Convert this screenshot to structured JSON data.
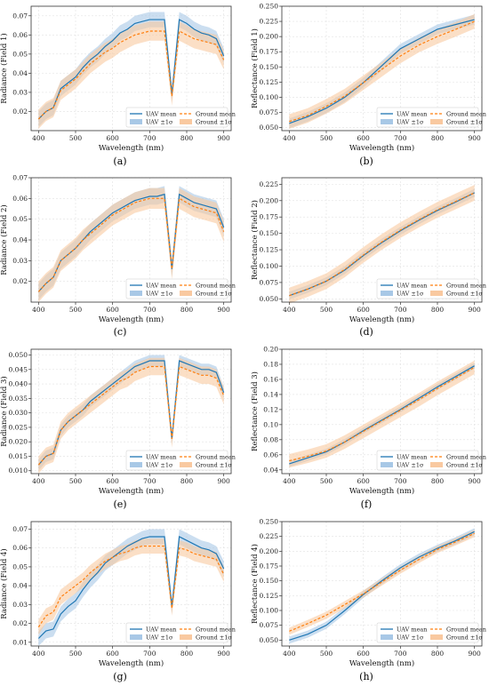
{
  "colors": {
    "uav": "#1f77b4",
    "uav_band": "#a8c8e6",
    "ground": "#ff7f0e",
    "ground_band": "#f9c9a0"
  },
  "legend_labels": [
    "UAV mean",
    "Ground mean",
    "UAV ±1σ",
    "Ground ±1σ"
  ],
  "chart_data": [
    {
      "type": "line",
      "panel": "a",
      "xlabel": "Wavelength (nm)",
      "ylabel": "Radiance (Field 1)",
      "xlim": [
        380,
        920
      ],
      "ylim": [
        0.01,
        0.075
      ],
      "xticks": [
        400,
        500,
        600,
        700,
        800,
        900
      ],
      "yticks": [
        0.02,
        0.03,
        0.04,
        0.05,
        0.06,
        0.07
      ],
      "ytick_decimals": 2,
      "legend": "lower-right",
      "x": [
        400,
        420,
        440,
        460,
        480,
        500,
        520,
        540,
        560,
        580,
        600,
        620,
        640,
        660,
        680,
        700,
        720,
        740,
        760,
        780,
        800,
        820,
        840,
        860,
        880,
        900
      ],
      "series": [
        {
          "name": "UAV mean",
          "values": [
            0.016,
            0.02,
            0.022,
            0.032,
            0.035,
            0.038,
            0.043,
            0.047,
            0.05,
            0.054,
            0.057,
            0.061,
            0.063,
            0.066,
            0.067,
            0.068,
            0.068,
            0.068,
            0.029,
            0.068,
            0.066,
            0.063,
            0.061,
            0.06,
            0.058,
            0.049
          ],
          "band": 0.004
        },
        {
          "name": "Ground mean",
          "values": [
            0.016,
            0.02,
            0.022,
            0.031,
            0.034,
            0.037,
            0.041,
            0.045,
            0.048,
            0.051,
            0.053,
            0.056,
            0.058,
            0.06,
            0.061,
            0.062,
            0.062,
            0.062,
            0.028,
            0.062,
            0.06,
            0.058,
            0.057,
            0.056,
            0.055,
            0.047
          ],
          "band": 0.005
        }
      ]
    },
    {
      "type": "line",
      "panel": "b",
      "xlabel": "Wavelength (nm)",
      "ylabel": "Reflectance (Field 1)",
      "xlim": [
        380,
        920
      ],
      "ylim": [
        0.045,
        0.25
      ],
      "xticks": [
        400,
        500,
        600,
        700,
        800,
        900
      ],
      "yticks": [
        0.05,
        0.075,
        0.1,
        0.125,
        0.15,
        0.175,
        0.2,
        0.225,
        0.25
      ],
      "ytick_decimals": 3,
      "legend": "lower-right",
      "x": [
        400,
        450,
        500,
        550,
        600,
        650,
        700,
        750,
        800,
        850,
        900
      ],
      "series": [
        {
          "name": "UAV mean",
          "values": [
            0.057,
            0.068,
            0.082,
            0.1,
            0.124,
            0.152,
            0.18,
            0.196,
            0.212,
            0.22,
            0.228
          ],
          "band": 0.008
        },
        {
          "name": "Ground mean",
          "values": [
            0.06,
            0.07,
            0.085,
            0.102,
            0.124,
            0.146,
            0.168,
            0.186,
            0.2,
            0.212,
            0.225
          ],
          "band": 0.012
        }
      ]
    },
    {
      "type": "line",
      "panel": "c",
      "xlabel": "Wavelength (nm)",
      "ylabel": "Radiance (Field 2)",
      "xlim": [
        380,
        920
      ],
      "ylim": [
        0.01,
        0.07
      ],
      "xticks": [
        400,
        500,
        600,
        700,
        800,
        900
      ],
      "yticks": [
        0.02,
        0.03,
        0.04,
        0.05,
        0.06,
        0.07
      ],
      "ytick_decimals": 2,
      "legend": "lower-right",
      "x": [
        400,
        420,
        440,
        460,
        480,
        500,
        520,
        540,
        560,
        580,
        600,
        620,
        640,
        660,
        680,
        700,
        720,
        740,
        760,
        780,
        800,
        820,
        840,
        860,
        880,
        900
      ],
      "series": [
        {
          "name": "UAV mean",
          "values": [
            0.015,
            0.019,
            0.022,
            0.03,
            0.033,
            0.036,
            0.04,
            0.044,
            0.047,
            0.05,
            0.053,
            0.055,
            0.057,
            0.059,
            0.06,
            0.061,
            0.061,
            0.062,
            0.026,
            0.062,
            0.06,
            0.058,
            0.057,
            0.056,
            0.055,
            0.046
          ],
          "band": 0.004
        },
        {
          "name": "Ground mean",
          "values": [
            0.015,
            0.019,
            0.022,
            0.03,
            0.033,
            0.036,
            0.04,
            0.043,
            0.046,
            0.049,
            0.052,
            0.054,
            0.056,
            0.058,
            0.059,
            0.06,
            0.06,
            0.06,
            0.026,
            0.06,
            0.058,
            0.056,
            0.055,
            0.054,
            0.053,
            0.044
          ],
          "band": 0.005
        }
      ]
    },
    {
      "type": "line",
      "panel": "d",
      "xlabel": "Wavelength (nm)",
      "ylabel": "Reflectance (Field 2)",
      "xlim": [
        380,
        920
      ],
      "ylim": [
        0.045,
        0.235
      ],
      "xticks": [
        400,
        500,
        600,
        700,
        800,
        900
      ],
      "yticks": [
        0.05,
        0.075,
        0.1,
        0.125,
        0.15,
        0.175,
        0.2,
        0.225
      ],
      "ytick_decimals": 3,
      "legend": "lower-right",
      "x": [
        400,
        450,
        500,
        550,
        600,
        650,
        700,
        750,
        800,
        850,
        900
      ],
      "series": [
        {
          "name": "UAV mean",
          "values": [
            0.055,
            0.065,
            0.077,
            0.094,
            0.116,
            0.136,
            0.154,
            0.17,
            0.185,
            0.198,
            0.212
          ],
          "band": 0.006
        },
        {
          "name": "Ground mean",
          "values": [
            0.055,
            0.065,
            0.077,
            0.095,
            0.117,
            0.137,
            0.155,
            0.171,
            0.186,
            0.199,
            0.212
          ],
          "band": 0.012
        }
      ]
    },
    {
      "type": "line",
      "panel": "e",
      "xlabel": "Wavelength (nm)",
      "ylabel": "Radiance (Field 3)",
      "xlim": [
        380,
        920
      ],
      "ylim": [
        0.009,
        0.052
      ],
      "xticks": [
        400,
        500,
        600,
        700,
        800,
        900
      ],
      "yticks": [
        0.01,
        0.015,
        0.02,
        0.025,
        0.03,
        0.035,
        0.04,
        0.045,
        0.05
      ],
      "ytick_decimals": 3,
      "legend": "lower-right",
      "x": [
        400,
        420,
        440,
        460,
        480,
        500,
        520,
        540,
        560,
        580,
        600,
        620,
        640,
        660,
        680,
        700,
        720,
        740,
        760,
        780,
        800,
        820,
        840,
        860,
        880,
        900
      ],
      "series": [
        {
          "name": "UAV mean",
          "values": [
            0.012,
            0.015,
            0.016,
            0.024,
            0.027,
            0.029,
            0.031,
            0.034,
            0.036,
            0.038,
            0.04,
            0.042,
            0.044,
            0.046,
            0.047,
            0.048,
            0.048,
            0.048,
            0.021,
            0.048,
            0.047,
            0.046,
            0.045,
            0.045,
            0.044,
            0.037
          ],
          "band": 0.002
        },
        {
          "name": "Ground mean",
          "values": [
            0.012,
            0.015,
            0.016,
            0.024,
            0.027,
            0.029,
            0.031,
            0.033,
            0.035,
            0.037,
            0.039,
            0.041,
            0.042,
            0.044,
            0.045,
            0.046,
            0.046,
            0.046,
            0.021,
            0.046,
            0.045,
            0.044,
            0.043,
            0.043,
            0.042,
            0.036
          ],
          "band": 0.003
        }
      ]
    },
    {
      "type": "line",
      "panel": "f",
      "xlabel": "Wavelength (nm)",
      "ylabel": "Reflectance (Field 3)",
      "xlim": [
        380,
        920
      ],
      "ylim": [
        0.035,
        0.2
      ],
      "xticks": [
        400,
        500,
        600,
        700,
        800,
        900
      ],
      "yticks": [
        0.04,
        0.06,
        0.08,
        0.1,
        0.12,
        0.14,
        0.16,
        0.18,
        0.2
      ],
      "ytick_decimals": 2,
      "legend": "lower-right",
      "x": [
        400,
        450,
        500,
        550,
        600,
        650,
        700,
        750,
        800,
        850,
        900
      ],
      "series": [
        {
          "name": "UAV mean",
          "values": [
            0.048,
            0.056,
            0.064,
            0.077,
            0.092,
            0.106,
            0.12,
            0.135,
            0.15,
            0.164,
            0.178
          ],
          "band": 0.004
        },
        {
          "name": "Ground mean",
          "values": [
            0.052,
            0.058,
            0.065,
            0.077,
            0.091,
            0.105,
            0.119,
            0.133,
            0.148,
            0.162,
            0.176
          ],
          "band": 0.009
        }
      ]
    },
    {
      "type": "line",
      "panel": "g",
      "xlabel": "Wavelength (nm)",
      "ylabel": "Radiance (Field 4)",
      "xlim": [
        380,
        920
      ],
      "ylim": [
        0.008,
        0.074
      ],
      "xticks": [
        400,
        500,
        600,
        700,
        800,
        900
      ],
      "yticks": [
        0.01,
        0.02,
        0.03,
        0.04,
        0.05,
        0.06,
        0.07
      ],
      "ytick_decimals": 2,
      "legend": "lower-right",
      "x": [
        400,
        420,
        440,
        460,
        480,
        500,
        520,
        540,
        560,
        580,
        600,
        620,
        640,
        660,
        680,
        700,
        720,
        740,
        760,
        780,
        800,
        820,
        840,
        860,
        880,
        900
      ],
      "series": [
        {
          "name": "UAV mean",
          "values": [
            0.012,
            0.016,
            0.017,
            0.025,
            0.029,
            0.032,
            0.038,
            0.043,
            0.047,
            0.052,
            0.055,
            0.058,
            0.061,
            0.063,
            0.065,
            0.066,
            0.066,
            0.066,
            0.029,
            0.066,
            0.064,
            0.062,
            0.06,
            0.059,
            0.057,
            0.049
          ],
          "band": 0.004
        },
        {
          "name": "Ground mean",
          "values": [
            0.018,
            0.024,
            0.026,
            0.034,
            0.037,
            0.04,
            0.043,
            0.047,
            0.05,
            0.053,
            0.055,
            0.057,
            0.058,
            0.06,
            0.061,
            0.061,
            0.061,
            0.061,
            0.028,
            0.06,
            0.059,
            0.057,
            0.056,
            0.055,
            0.054,
            0.046
          ],
          "band": 0.004
        }
      ]
    },
    {
      "type": "line",
      "panel": "h",
      "xlabel": "Wavelength (nm)",
      "ylabel": "Reflectance (Field 4)",
      "xlim": [
        380,
        920
      ],
      "ylim": [
        0.04,
        0.25
      ],
      "xticks": [
        400,
        500,
        600,
        700,
        800,
        900
      ],
      "yticks": [
        0.05,
        0.075,
        0.1,
        0.125,
        0.15,
        0.175,
        0.2,
        0.225,
        0.25
      ],
      "ytick_decimals": 3,
      "legend": "lower-right",
      "x": [
        400,
        450,
        500,
        550,
        600,
        650,
        700,
        750,
        800,
        850,
        900
      ],
      "series": [
        {
          "name": "UAV mean",
          "values": [
            0.05,
            0.06,
            0.075,
            0.1,
            0.127,
            0.15,
            0.172,
            0.19,
            0.205,
            0.218,
            0.233
          ],
          "band": 0.006
        },
        {
          "name": "Ground mean",
          "values": [
            0.065,
            0.078,
            0.092,
            0.11,
            0.128,
            0.148,
            0.168,
            0.186,
            0.203,
            0.216,
            0.23
          ],
          "band": 0.006
        }
      ]
    }
  ],
  "captions": [
    "(a)",
    "(b)",
    "(c)",
    "(d)",
    "(e)",
    "(f)",
    "(g)",
    "(h)"
  ]
}
